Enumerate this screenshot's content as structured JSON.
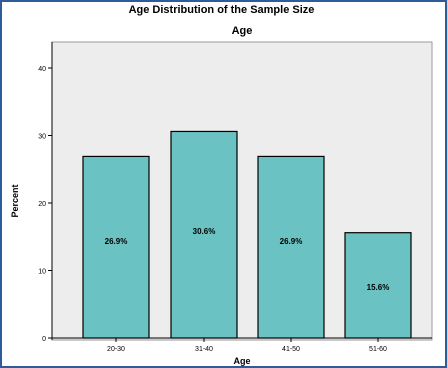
{
  "chart_data": {
    "type": "bar",
    "title": "Age Distribution of the Sample Size",
    "subtitle": "Age",
    "xlabel": "Age",
    "ylabel": "Percent",
    "categories": [
      "20-30",
      "31-40",
      "41-50",
      "51-60"
    ],
    "values": [
      26.9,
      30.6,
      26.9,
      15.6
    ],
    "data_labels": [
      "26.9%",
      "30.6%",
      "26.9%",
      "15.6%"
    ],
    "ylim": [
      0,
      42
    ],
    "yticks": [
      "0",
      "10",
      "20",
      "30",
      "40"
    ],
    "grid": false,
    "legend": "none",
    "colors": {
      "bar_fill": "#6bc2c2",
      "bar_stroke": "#000000",
      "plot_bg": "#ededed",
      "frame_border": "#2e5c9a"
    }
  }
}
